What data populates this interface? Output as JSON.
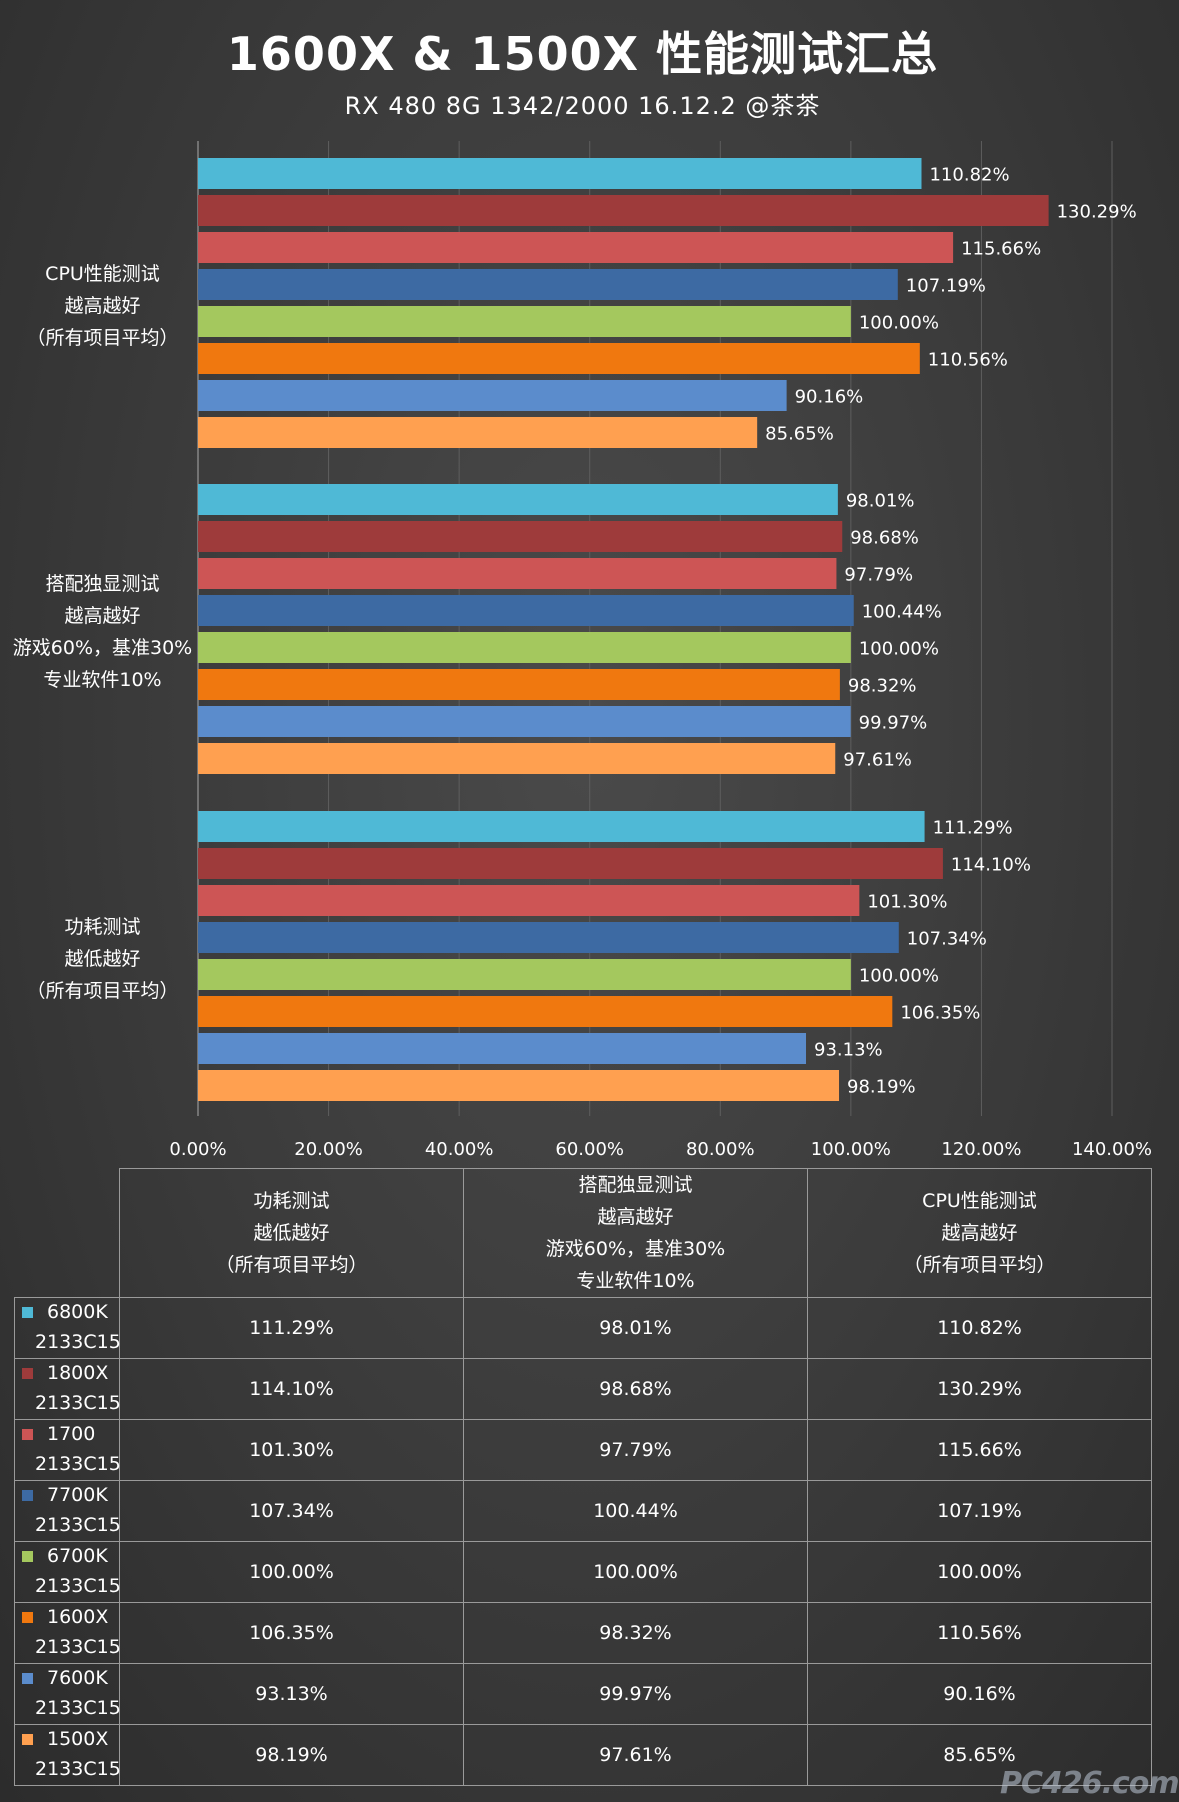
{
  "title": "1600X & 1500X 性能测试汇总",
  "subtitle": "RX 480  8G  1342/2000   16.12.2  @茶茶",
  "chart_data": {
    "type": "bar",
    "orientation": "horizontal",
    "xlim": [
      0,
      140
    ],
    "x_ticks": [
      "0.00%",
      "20.00%",
      "40.00%",
      "60.00%",
      "80.00%",
      "100.00%",
      "120.00%",
      "140.00%"
    ],
    "grid": true,
    "categories": [
      {
        "lines": [
          "CPU性能测试",
          "越高越好",
          "（所有项目平均）"
        ]
      },
      {
        "lines": [
          "搭配独显测试",
          "越高越好",
          "游戏60%，基准30%",
          "专业软件10%"
        ]
      },
      {
        "lines": [
          "功耗测试",
          "越低越好",
          "（所有项目平均）"
        ]
      }
    ],
    "series": [
      {
        "name": "6800K",
        "sub": "2133C15",
        "color": "#4fb9d6",
        "values": [
          110.82,
          98.01,
          111.29
        ],
        "labels": [
          "110.82%",
          "98.01%",
          "111.29%"
        ]
      },
      {
        "name": "1800X",
        "sub": "2133C15",
        "color": "#9e3b3b",
        "values": [
          130.29,
          98.68,
          114.1
        ],
        "labels": [
          "130.29%",
          "98.68%",
          "114.10%"
        ]
      },
      {
        "name": "1700",
        "sub": "2133C15",
        "color": "#cd5555",
        "values": [
          115.66,
          97.79,
          101.3
        ],
        "labels": [
          "115.66%",
          "97.79%",
          "101.30%"
        ]
      },
      {
        "name": "7700K",
        "sub": "2133C15",
        "color": "#3d6aa3",
        "values": [
          107.19,
          100.44,
          107.34
        ],
        "labels": [
          "107.19%",
          "100.44%",
          "107.34%"
        ]
      },
      {
        "name": "6700K",
        "sub": "2133C15",
        "color": "#a4c85e",
        "values": [
          100.0,
          100.0,
          100.0
        ],
        "labels": [
          "100.00%",
          "100.00%",
          "100.00%"
        ]
      },
      {
        "name": "1600X",
        "sub": "2133C15",
        "color": "#f0780f",
        "values": [
          110.56,
          98.32,
          106.35
        ],
        "labels": [
          "110.56%",
          "98.32%",
          "106.35%"
        ]
      },
      {
        "name": "7600K",
        "sub": "2133C15",
        "color": "#5b8ccc",
        "values": [
          90.16,
          99.97,
          93.13
        ],
        "labels": [
          "90.16%",
          "99.97%",
          "93.13%"
        ]
      },
      {
        "name": "1500X",
        "sub": "2133C15",
        "color": "#ffa050",
        "values": [
          85.65,
          97.61,
          98.19
        ],
        "labels": [
          "85.65%",
          "97.61%",
          "98.19%"
        ]
      }
    ]
  },
  "table": {
    "headers": [
      {
        "lines": [
          "功耗测试",
          "越低越好",
          "（所有项目平均）"
        ]
      },
      {
        "lines": [
          "搭配独显测试",
          "越高越好",
          "游戏60%，基准30%",
          "专业软件10%"
        ]
      },
      {
        "lines": [
          "CPU性能测试",
          "越高越好",
          "（所有项目平均）"
        ]
      }
    ],
    "rows": [
      {
        "name": "6800K",
        "sub": "2133C15",
        "color": "#4fb9d6",
        "cells": [
          "111.29%",
          "98.01%",
          "110.82%"
        ]
      },
      {
        "name": "1800X",
        "sub": "2133C15",
        "color": "#9e3b3b",
        "cells": [
          "114.10%",
          "98.68%",
          "130.29%"
        ]
      },
      {
        "name": "1700",
        "sub": "2133C15",
        "color": "#cd5555",
        "cells": [
          "101.30%",
          "97.79%",
          "115.66%"
        ]
      },
      {
        "name": "7700K",
        "sub": "2133C15",
        "color": "#3d6aa3",
        "cells": [
          "107.34%",
          "100.44%",
          "107.19%"
        ]
      },
      {
        "name": "6700K",
        "sub": "2133C15",
        "color": "#a4c85e",
        "cells": [
          "100.00%",
          "100.00%",
          "100.00%"
        ]
      },
      {
        "name": "1600X",
        "sub": "2133C15",
        "color": "#f0780f",
        "cells": [
          "106.35%",
          "98.32%",
          "110.56%"
        ]
      },
      {
        "name": "7600K",
        "sub": "2133C15",
        "color": "#5b8ccc",
        "cells": [
          "93.13%",
          "99.97%",
          "90.16%"
        ]
      },
      {
        "name": "1500X",
        "sub": "2133C15",
        "color": "#ffa050",
        "cells": [
          "98.19%",
          "97.61%",
          "85.65%"
        ]
      }
    ]
  },
  "watermark": "PC426.com"
}
